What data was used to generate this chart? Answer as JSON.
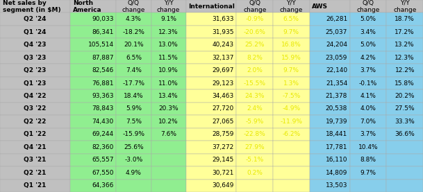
{
  "rows": [
    [
      "Q2 '24",
      "90,033",
      "4.3%",
      "9.1%",
      "31,633",
      "-0.9%",
      "6.5%",
      "26,281",
      "5.0%",
      "18.7%"
    ],
    [
      "Q1 '24",
      "86,341",
      "-18.2%",
      "12.3%",
      "31,935",
      "-20.6%",
      "9.7%",
      "25,037",
      "3.4%",
      "17.2%"
    ],
    [
      "Q4 '23",
      "105,514",
      "20.1%",
      "13.0%",
      "40,243",
      "25.2%",
      "16.8%",
      "24,204",
      "5.0%",
      "13.2%"
    ],
    [
      "Q3 '23",
      "87,887",
      "6.5%",
      "11.5%",
      "32,137",
      "8.2%",
      "15.9%",
      "23,059",
      "4.2%",
      "12.3%"
    ],
    [
      "Q2 '23",
      "82,546",
      "7.4%",
      "10.9%",
      "29,697",
      "2.0%",
      "9.7%",
      "22,140",
      "3.7%",
      "12.2%"
    ],
    [
      "Q1 '23",
      "76,881",
      "-17.7%",
      "11.0%",
      "29,123",
      "-15.5%",
      "1.3%",
      "21,354",
      "-0.1%",
      "15.8%"
    ],
    [
      "Q4 '22",
      "93,363",
      "18.4%",
      "13.4%",
      "34,463",
      "24.3%",
      "-7.5%",
      "21,378",
      "4.1%",
      "20.2%"
    ],
    [
      "Q3 '22",
      "78,843",
      "5.9%",
      "20.3%",
      "27,720",
      "2.4%",
      "-4.9%",
      "20,538",
      "4.0%",
      "27.5%"
    ],
    [
      "Q2 '22",
      "74,430",
      "7.5%",
      "10.2%",
      "27,065",
      "-5.9%",
      "-11.9%",
      "19,739",
      "7.0%",
      "33.3%"
    ],
    [
      "Q1 '22",
      "69,244",
      "-15.9%",
      "7.6%",
      "28,759",
      "-22.8%",
      "-6.2%",
      "18,441",
      "3.7%",
      "36.6%"
    ],
    [
      "Q4 '21",
      "82,360",
      "25.6%",
      "",
      "37,272",
      "27.9%",
      "",
      "17,781",
      "10.4%",
      ""
    ],
    [
      "Q3 '21",
      "65,557",
      "-3.0%",
      "",
      "29,145",
      "-5.1%",
      "",
      "16,110",
      "8.8%",
      ""
    ],
    [
      "Q2 '21",
      "67,550",
      "4.9%",
      "",
      "30,721",
      "0.2%",
      "",
      "14,809",
      "9.7%",
      ""
    ],
    [
      "Q1 '21",
      "64,366",
      "",
      "",
      "30,649",
      "",
      "",
      "13,503",
      "",
      ""
    ]
  ],
  "col_widths": [
    1.25,
    0.82,
    0.62,
    0.62,
    0.9,
    0.65,
    0.65,
    0.72,
    0.65,
    0.65
  ],
  "bg_header": "#c0c0c0",
  "bg_label_col": "#c0c0c0",
  "bg_na": "#90ee90",
  "bg_intl": "#ffff99",
  "bg_aws": "#87ceeb",
  "text_black": "#000000",
  "text_yellow": "#e8e800",
  "header_fontsize": 6.5,
  "cell_fontsize": 6.5
}
